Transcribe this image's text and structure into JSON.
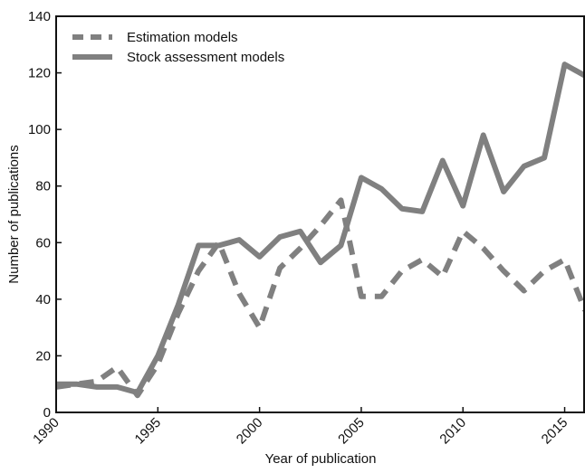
{
  "chart_data": {
    "type": "line",
    "xlabel": "Year of publication",
    "ylabel": "Number of publications",
    "x": [
      1990,
      1991,
      1992,
      1993,
      1994,
      1995,
      1996,
      1997,
      1998,
      1999,
      2000,
      2001,
      2002,
      2003,
      2004,
      2005,
      2006,
      2007,
      2008,
      2009,
      2010,
      2011,
      2012,
      2013,
      2014,
      2015,
      2016
    ],
    "series": [
      {
        "name": "Estimation models",
        "color": "#808080",
        "dashed": true,
        "values": [
          9,
          10,
          11,
          16,
          6,
          17,
          35,
          50,
          60,
          42,
          30,
          51,
          58,
          66,
          75,
          41,
          41,
          50,
          54,
          48,
          64,
          58,
          50,
          43,
          50,
          54,
          36
        ]
      },
      {
        "name": "Stock assessment models",
        "color": "#808080",
        "dashed": false,
        "values": [
          10,
          10,
          9,
          9,
          7,
          20,
          38,
          59,
          59,
          61,
          55,
          62,
          64,
          53,
          59,
          83,
          79,
          72,
          71,
          89,
          73,
          98,
          78,
          87,
          90,
          123,
          119
        ]
      }
    ],
    "xlim": [
      1990,
      2016
    ],
    "xticks": [
      1990,
      1995,
      2000,
      2005,
      2010,
      2015
    ],
    "ylim": [
      0,
      140
    ],
    "yticks": [
      0,
      20,
      40,
      60,
      80,
      100,
      120,
      140
    ],
    "legend": "upper left"
  }
}
